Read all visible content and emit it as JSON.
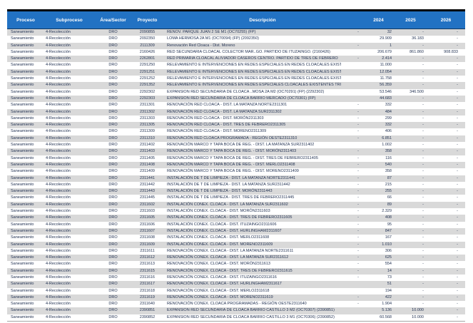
{
  "table": {
    "colors": {
      "header_bg": "#2272C3",
      "header_text": "#FFFFFF",
      "stripe": "#D9D9D9",
      "row_bg": "#FFFFFF",
      "body_text": "#1F2F50",
      "top_border": "#000000"
    },
    "header": {
      "proceso": "Proceso",
      "subproceso": "Subproceso",
      "area": "Área/Sector",
      "proyecto": "Proyecto",
      "descripcion": "Descripción",
      "y2024": "2024",
      "y2025": "2025",
      "y2026": "2026"
    },
    "rows": [
      {
        "proceso": "Saneamiento",
        "subproceso": "4-Recolección",
        "area": "DRO",
        "proyecto": "2090855",
        "descripcion": "RENOV. PARQUE JUAN 2 SE M1 (OC70255) (FP)",
        "pre": "-",
        "y2024": "32",
        "y2025": "-",
        "y2026": "-"
      },
      {
        "proceso": "Saneamiento",
        "subproceso": "4-Recolección",
        "area": "DRO",
        "proyecto": "2092350",
        "descripcion": "LOMA HERMOSA 2A M1 (OC70094) (FP) (2092350)",
        "pre": "",
        "y2024": "29.909",
        "y2025": "36.183",
        "y2026": "-"
      },
      {
        "proceso": "Saneamiento",
        "subproceso": "4-Recolección",
        "area": "DRO",
        "proyecto": "2111309",
        "descripcion": "Renovación Red Cloaca  - Dist. Moreno",
        "pre": "-",
        "y2024": "1",
        "y2025": "-",
        "y2026": "-"
      },
      {
        "proceso": "Saneamiento",
        "subproceso": "4-Recolección",
        "area": "DRO",
        "proyecto": "2160426",
        "descripcion": "RED SECUNDARIA CLOACAL COLECTOR MAR..GO. PARTIDO DE ITUZAINGO. (2160426)",
        "pre": "",
        "y2024": "206.679",
        "y2025": "861.860",
        "y2026": "908.833"
      },
      {
        "proceso": "Saneamiento",
        "subproceso": "4-Recolección",
        "area": "DRO",
        "proyecto": "2262801",
        "descripcion": "RED PRIMARIA CLOACAL ALIVIADOR CASEROS CENTRO. PARTIDO DE TRES DE FEBRERO",
        "pre": "-",
        "y2024": "2.414",
        "y2025": "-",
        "y2026": "-"
      },
      {
        "proceso": "Saneamiento",
        "subproceso": "4-Recolección",
        "area": "DRO",
        "proyecto": "2291250",
        "descripcion": "RELEVAMIENTO E INTERVENCIONES EN REDES ESPECIALES EN REDES CLOACALES EXISTENTES",
        "pre": "",
        "y2024": "11.000",
        "y2025": "-",
        "y2026": "-"
      },
      {
        "proceso": "Saneamiento",
        "subproceso": "4-Recolección",
        "area": "DRO",
        "proyecto": "2291251",
        "descripcion": "RELEVAMIENTO E INTERVENCIONES EN REDES ESPECIALES EN REDES CLOACALES EXISTENTES",
        "pre": "",
        "y2024": "12.054",
        "y2025": "-",
        "y2026": "-"
      },
      {
        "proceso": "Saneamiento",
        "subproceso": "4-Recolección",
        "area": "DRO",
        "proyecto": "2291252",
        "descripcion": "RELEVAMIENTO E INTERVENCIONES EN REDES ESPECIALES EN REDES CLOACALES EXISTENTES",
        "pre": "",
        "y2024": "11.758",
        "y2025": "-",
        "y2026": "-"
      },
      {
        "proceso": "Saneamiento",
        "subproceso": "4-Recolección",
        "area": "DRO",
        "proyecto": "2291352",
        "descripcion": "RELEVAMIENTO E INTERVENCIONES EN REDES ESPECIALES CLOACALES EXISTENTES TRUJUI E3",
        "pre": "",
        "y2024": "56.359",
        "y2025": "-",
        "y2026": "-"
      },
      {
        "proceso": "Saneamiento",
        "subproceso": "4-Recolección",
        "area": "DRO",
        "proyecto": "2292302",
        "descripcion": "EXPANSION RED SECUNDARIA DE CLOACA ..MOSA 2A M2 (OC70291) (FP) (2292302)",
        "pre": "",
        "y2024": "53.546",
        "y2025": "346.500",
        "y2026": "-"
      },
      {
        "proceso": "Saneamiento",
        "subproceso": "4-Recolección",
        "area": "DRO",
        "proyecto": "2292303",
        "descripcion": "EXPANSION RED SECUNDARIA DE CLOACA BARRIO MERCADO (OC70301) (FP)",
        "pre": "",
        "y2024": "44.683",
        "y2025": "-",
        "y2026": "-"
      },
      {
        "proceso": "Saneamiento",
        "subproceso": "4-Recolección",
        "area": "DRO",
        "proyecto": "2311301",
        "descripcion": "RENOVACIÓN RED CLOACA  - DIST. LA MATANZA NORTE2311301",
        "pre": "-",
        "y2024": "332",
        "y2025": "-",
        "y2026": "-"
      },
      {
        "proceso": "Saneamiento",
        "subproceso": "4-Recolección",
        "area": "DRO",
        "proyecto": "2311302",
        "descripcion": "RENOVACIÓN RED CLOACA  - DIST. LA MATANZA SUR2311302",
        "pre": "-",
        "y2024": "484",
        "y2025": "-",
        "y2026": "-"
      },
      {
        "proceso": "Saneamiento",
        "subproceso": "4-Recolección",
        "area": "DRO",
        "proyecto": "2311303",
        "descripcion": "RENOVACIÓN RED CLOACA  - DIST. MORÓN2311303",
        "pre": "-",
        "y2024": "299",
        "y2025": "-",
        "y2026": "-"
      },
      {
        "proceso": "Saneamiento",
        "subproceso": "4-Recolección",
        "area": "DRO",
        "proyecto": "2311305",
        "descripcion": "RENOVACIÓN RED CLOACA  - DIST. TRES DE FEBRERO2311305",
        "pre": "-",
        "y2024": "332",
        "y2025": "-",
        "y2026": "-"
      },
      {
        "proceso": "Saneamiento",
        "subproceso": "4-Recolección",
        "area": "DRO",
        "proyecto": "2311309",
        "descripcion": "RENOVACIÓN RED CLOACA  - DIST. MORENO2311309",
        "pre": "-",
        "y2024": "406",
        "y2025": "-",
        "y2026": "-"
      },
      {
        "proceso": "Saneamiento",
        "subproceso": "4-Recolección",
        "area": "DRO",
        "proyecto": "2311310",
        "descripcion": "RENOVACIÓN RED CLOACA PROGRAMADA - REGIÓN OESTE2311310",
        "pre": "-",
        "y2024": "6.851",
        "y2025": "-",
        "y2026": "-"
      },
      {
        "proceso": "Saneamiento",
        "subproceso": "4-Recolección",
        "area": "DRO",
        "proyecto": "2311402",
        "descripcion": "RENOVACIÓN MARCO Y TAPA BOCA DE REG.  - DIST. LA MATANZA SUR2311402",
        "pre": "",
        "y2024": "1.002",
        "y2025": "-",
        "y2026": "-"
      },
      {
        "proceso": "Saneamiento",
        "subproceso": "4-Recolección",
        "area": "DRO",
        "proyecto": "2311403",
        "descripcion": "RENOVACIÓN MARCO Y TAPA BOCA DE REG.  - DIST. MORÓN2311403",
        "pre": "-",
        "y2024": "358",
        "y2025": "-",
        "y2026": "-"
      },
      {
        "proceso": "Saneamiento",
        "subproceso": "4-Recolección",
        "area": "DRO",
        "proyecto": "2311405",
        "descripcion": "RENOVACIÓN MARCO Y TAPA BOCA DE REG.  - DIST. TRES DE FEBRERO2311405",
        "pre": "-",
        "y2024": "116",
        "y2025": "-",
        "y2026": "-"
      },
      {
        "proceso": "Saneamiento",
        "subproceso": "4-Recolección",
        "area": "DRO",
        "proyecto": "2311408",
        "descripcion": "RENOVACIÓN MARCO Y TAPA BOCA DE REG.  - DIST. MERLO2311408",
        "pre": "-",
        "y2024": "540",
        "y2025": "-",
        "y2026": "-"
      },
      {
        "proceso": "Saneamiento",
        "subproceso": "4-Recolección",
        "area": "DRO",
        "proyecto": "2311409",
        "descripcion": "RENOVACIÓN MARCO Y TAPA BOCA DE REG.  - DIST. MORENO2311409",
        "pre": "-",
        "y2024": "358",
        "y2025": "-",
        "y2026": "-"
      },
      {
        "proceso": "Saneamiento",
        "subproceso": "4-Recolección",
        "area": "DRO",
        "proyecto": "2311441",
        "descripcion": "INSTALACIÓN DE T DE LIMPIEZA - DIST. LA MATANZA NORTE2311441",
        "pre": "-",
        "y2024": "87",
        "y2025": "-",
        "y2026": "-"
      },
      {
        "proceso": "Saneamiento",
        "subproceso": "4-Recolección",
        "area": "DRO",
        "proyecto": "2311442",
        "descripcion": "INSTALACIÓN DE T DE LIMPIEZA - DIST. LA MATANZA SUR2311442",
        "pre": "-",
        "y2024": "215",
        "y2025": "-",
        "y2026": "-"
      },
      {
        "proceso": "Saneamiento",
        "subproceso": "4-Recolección",
        "area": "DRO",
        "proyecto": "2311443",
        "descripcion": "INSTALACIÓN DE T DE LIMPIEZA - DIST. MORÓN2311443",
        "pre": "-",
        "y2024": "255",
        "y2025": "-",
        "y2026": "-"
      },
      {
        "proceso": "Saneamiento",
        "subproceso": "4-Recolección",
        "area": "DRO",
        "proyecto": "2311445",
        "descripcion": "INSTALACIÓN DE T DE LIMPIEZA - DIST. TRES DE FEBRERO2311445",
        "pre": "-",
        "y2024": "66",
        "y2025": "-",
        "y2026": "-"
      },
      {
        "proceso": "Saneamiento",
        "subproceso": "4-Recolección",
        "area": "DRO",
        "proyecto": "2311602",
        "descripcion": "INSTALACIÓN CONEX. CLOACA - DIST. LA MATANZA SUR2311602",
        "pre": "-",
        "y2024": "89",
        "y2025": "-",
        "y2026": "-"
      },
      {
        "proceso": "Saneamiento",
        "subproceso": "4-Recolección",
        "area": "DRO",
        "proyecto": "2311603",
        "descripcion": "INSTALACIÓN CONEX. CLOACA - DIST. MORÓN2311603",
        "pre": "-",
        "y2024": "2.329",
        "y2025": "-",
        "y2026": "-"
      },
      {
        "proceso": "Saneamiento",
        "subproceso": "4-Recolección",
        "area": "DRO",
        "proyecto": "2311605",
        "descripcion": "INSTALACIÓN CONEX. CLOACA - DIST. TRES DE FEBRERO2311605",
        "pre": "-",
        "y2024": "408",
        "y2025": "-",
        "y2026": "-"
      },
      {
        "proceso": "Saneamiento",
        "subproceso": "4-Recolección",
        "area": "DRO",
        "proyecto": "2311606",
        "descripcion": "INSTALACIÓN CONEX. CLOACA - DIST. ITUZAINGO2311606",
        "pre": "-",
        "y2024": "95",
        "y2025": "-",
        "y2026": "-"
      },
      {
        "proceso": "Saneamiento",
        "subproceso": "4-Recolección",
        "area": "DRO",
        "proyecto": "2311607",
        "descripcion": "INSTALACIÓN CONEX. CLOACA - DIST. HURLINGHAM2311607",
        "pre": "-",
        "y2024": "847",
        "y2025": "-",
        "y2026": "-"
      },
      {
        "proceso": "Saneamiento",
        "subproceso": "4-Recolección",
        "area": "DRO",
        "proyecto": "2311608",
        "descripcion": "INSTALACIÓN CONEX. CLOACA - DIST. MERLO2311608",
        "pre": "-",
        "y2024": "167",
        "y2025": "-",
        "y2026": "-"
      },
      {
        "proceso": "Saneamiento",
        "subproceso": "4-Recolección",
        "area": "DRO",
        "proyecto": "2311609",
        "descripcion": "INSTALACIÓN CONEX. CLOACA - DIST. MORENO2311609",
        "pre": "-",
        "y2024": "1.010",
        "y2025": "-",
        "y2026": "-"
      },
      {
        "proceso": "Saneamiento",
        "subproceso": "4-Recolección",
        "area": "DRO",
        "proyecto": "2311611",
        "descripcion": "RENOVACIÓN CONEX. CLOACA  - DIST. LA MATANZA NORTE2311611",
        "pre": "-",
        "y2024": "306",
        "y2025": "-",
        "y2026": "-"
      },
      {
        "proceso": "Saneamiento",
        "subproceso": "4-Recolección",
        "area": "DRO",
        "proyecto": "2311612",
        "descripcion": "RENOVACIÓN CONEX. CLOACA  - DIST. LA MATANZA SUR2311612",
        "pre": "-",
        "y2024": "625",
        "y2025": "-",
        "y2026": "-"
      },
      {
        "proceso": "Saneamiento",
        "subproceso": "4-Recolección",
        "area": "DRO",
        "proyecto": "2311613",
        "descripcion": "RENOVACIÓN CONEX. CLOACA  - DIST. MORÓN2311613",
        "pre": "-",
        "y2024": "554",
        "y2025": "-",
        "y2026": "-"
      },
      {
        "proceso": "Saneamiento",
        "subproceso": "4-Recolección",
        "area": "DRO",
        "proyecto": "2311615",
        "descripcion": "RENOVACIÓN CONEX. CLOACA  - DIST. TRES DE FEBRERO2311615",
        "pre": "-",
        "y2024": "14",
        "y2025": "-",
        "y2026": "-"
      },
      {
        "proceso": "Saneamiento",
        "subproceso": "4-Recolección",
        "area": "DRO",
        "proyecto": "2311616",
        "descripcion": "RENOVACIÓN CONEX. CLOACA  - DIST. ITUZAINGO2311616",
        "pre": "-",
        "y2024": "73",
        "y2025": "-",
        "y2026": "-"
      },
      {
        "proceso": "Saneamiento",
        "subproceso": "4-Recolección",
        "area": "DRO",
        "proyecto": "2311617",
        "descripcion": "RENOVACIÓN CONEX. CLOACA  - DIST. HURLINGHAM2311617",
        "pre": "",
        "y2024": "51",
        "y2025": "-",
        "y2026": "-"
      },
      {
        "proceso": "Saneamiento",
        "subproceso": "4-Recolección",
        "area": "DRO",
        "proyecto": "2311618",
        "descripcion": "RENOVACIÓN CONEX. CLOACA  - DIST. MERLO2311618",
        "pre": "",
        "y2024": "194",
        "y2025": "-",
        "y2026": "-"
      },
      {
        "proceso": "Saneamiento",
        "subproceso": "4-Recolección",
        "area": "DRO",
        "proyecto": "2311619",
        "descripcion": "RENOVACIÓN CONEX. CLOACA  - DIST. MORENO2311619",
        "pre": "-",
        "y2024": "422",
        "y2025": "-",
        "y2026": "-"
      },
      {
        "proceso": "Saneamiento",
        "subproceso": "4-Recolección",
        "area": "DRO",
        "proyecto": "2311640",
        "descripcion": "RENOVACIÓN CONEX. CLOACA PROGRAMADAS - REGIÓN OESTE2311640",
        "pre": "-",
        "y2024": "1.904",
        "y2025": "-",
        "y2026": "-"
      },
      {
        "proceso": "Saneamiento",
        "subproceso": "4-Recolección",
        "area": "DRO",
        "proyecto": "2390851",
        "descripcion": "EXPANSION RED SECUNDARIA DE CLOACA BARRIO CASTILLO 3 M2 (OC70307) (2390851)",
        "pre": "",
        "y2024": "5.136",
        "y2025": "10.000",
        "y2026": "-"
      },
      {
        "proceso": "Saneamiento",
        "subproceso": "4-Recolección",
        "area": "DRO",
        "proyecto": "2390852",
        "descripcion": "EXPANSION RED SECUNDARIA DE CLOACA BARRIO CASTILLO 3 M1 (OC70306) (2390852)",
        "pre": "",
        "y2024": "60.568",
        "y2025": "10.000",
        "y2026": "-"
      }
    ]
  }
}
